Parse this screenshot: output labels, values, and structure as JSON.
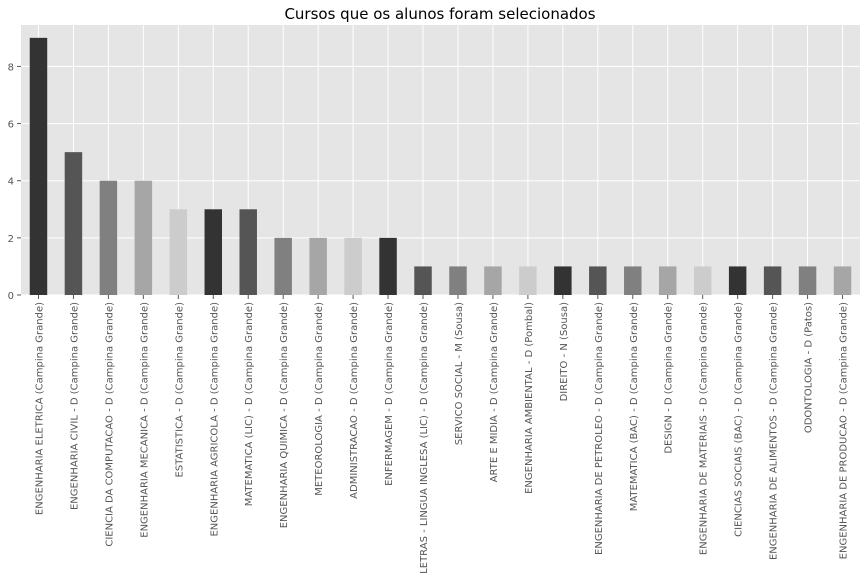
{
  "chart_data": {
    "type": "bar",
    "title": "Cursos que os alunos foram selecionados",
    "xlabel": "",
    "ylabel": "",
    "ylim": [
      0,
      9.45
    ],
    "yticks": [
      0,
      2,
      4,
      6,
      8
    ],
    "grid": true,
    "legend": "none",
    "style": "ggplot",
    "colors": [
      "#333333",
      "#555555",
      "#808080",
      "#a6a6a6",
      "#cccccc"
    ],
    "categories": [
      "ENGENHARIA ELETRICA (Campina Grande)",
      "ENGENHARIA CIVIL - D (Campina Grande)",
      "CIENCIA DA COMPUTACAO - D (Campina Grande)",
      "ENGENHARIA MECANICA - D (Campina Grande)",
      "ESTATISTICA - D (Campina Grande)",
      "ENGENHARIA AGRICOLA - D (Campina Grande)",
      "MATEMATICA (LIC) - D (Campina Grande)",
      "ENGENHARIA QUIMICA - D (Campina Grande)",
      "METEOROLOGIA - D (Campina Grande)",
      "ADMINISTRACAO - D (Campina Grande)",
      "ENFERMAGEM - D (Campina Grande)",
      "LETRAS - LINGUA INGLESA (LIC) - D (Campina Grande)",
      "SERVICO SOCIAL - M (Sousa)",
      "ARTE E MIDIA - D (Campina Grande)",
      "ENGENHARIA AMBIENTAL - D (Pombal)",
      "DIREITO - N (Sousa)",
      "ENGENHARIA DE PETROLEO - D (Campina Grande)",
      "MATEMATICA (BAC) - D (Campina Grande)",
      "DESIGN - D (Campina Grande)",
      "ENGENHARIA DE MATERIAIS - D (Campina Grande)",
      "CIENCIAS SOCIAIS (BAC) - D (Campina Grande)",
      "ENGENHARIA DE ALIMENTOS - D (Campina Grande)",
      "ODONTOLOGIA - D (Patos)",
      "ENGENHARIA DE PRODUCAO - D (Campina Grande)"
    ],
    "values": [
      9,
      5,
      4,
      4,
      3,
      3,
      3,
      2,
      2,
      2,
      2,
      1,
      1,
      1,
      1,
      1,
      1,
      1,
      1,
      1,
      1,
      1,
      1,
      1
    ]
  }
}
